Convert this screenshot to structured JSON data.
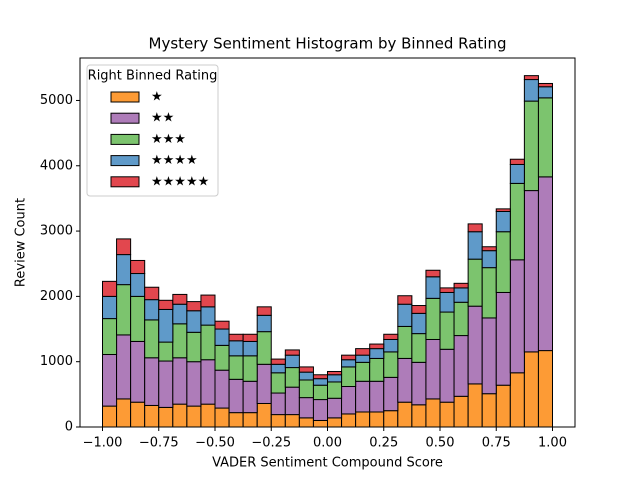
{
  "chart_data": {
    "type": "histogram",
    "stacked": true,
    "title": "Mystery Sentiment Histogram by Binned Rating",
    "x_label": "VADER Sentiment Compound Score",
    "y_label": "Review Count",
    "legend_title": "Right Binned Rating",
    "legend_position": "upper left",
    "bins": [
      -1,
      -0.9375,
      -0.875,
      -0.8125,
      -0.75,
      -0.6875,
      -0.625,
      -0.5625,
      -0.5,
      -0.4375,
      -0.375,
      -0.3125,
      -0.25,
      -0.1875,
      -0.125,
      -0.0625,
      0,
      0.0625,
      0.125,
      0.1875,
      0.25,
      0.3125,
      0.375,
      0.4375,
      0.5,
      0.5625,
      0.625,
      0.6875,
      0.75,
      0.8125,
      0.875,
      0.9375,
      1
    ],
    "series": [
      {
        "name": "★",
        "color": "#fd9b35",
        "values": [
          320,
          430,
          380,
          330,
          300,
          350,
          320,
          350,
          290,
          220,
          220,
          360,
          190,
          190,
          140,
          100,
          140,
          200,
          230,
          230,
          250,
          380,
          340,
          430,
          380,
          470,
          660,
          510,
          640,
          830,
          1150,
          1170
        ]
      },
      {
        "name": "★★",
        "color": "#ae7cb9",
        "values": [
          790,
          980,
          930,
          730,
          710,
          710,
          680,
          680,
          580,
          510,
          480,
          600,
          330,
          420,
          310,
          320,
          300,
          420,
          470,
          470,
          510,
          670,
          650,
          910,
          810,
          930,
          1190,
          1160,
          1420,
          1730,
          2470,
          2660
        ]
      },
      {
        "name": "★★★",
        "color": "#7cc46e",
        "values": [
          550,
          770,
          690,
          580,
          290,
          520,
          450,
          530,
          380,
          360,
          390,
          500,
          310,
          300,
          270,
          220,
          250,
          300,
          290,
          350,
          390,
          490,
          440,
          630,
          570,
          510,
          720,
          770,
          930,
          1170,
          1370,
          1210
        ]
      },
      {
        "name": "★★★★",
        "color": "#5f9ac9",
        "values": [
          340,
          460,
          350,
          310,
          500,
          300,
          330,
          280,
          250,
          230,
          220,
          250,
          130,
          190,
          120,
          100,
          110,
          110,
          110,
          150,
          190,
          340,
          310,
          330,
          300,
          220,
          420,
          260,
          310,
          290,
          330,
          170
        ]
      },
      {
        "name": "★★★★★",
        "color": "#e2474e",
        "values": [
          230,
          240,
          200,
          190,
          140,
          150,
          140,
          180,
          120,
          100,
          110,
          130,
          80,
          80,
          80,
          60,
          50,
          70,
          100,
          70,
          80,
          130,
          120,
          100,
          70,
          70,
          120,
          60,
          40,
          80,
          60,
          50
        ]
      }
    ],
    "xlim": [
      -1.1,
      1.1
    ],
    "ylim": [
      0,
      5650
    ],
    "xticks": [
      {
        "value": -1,
        "label": "−1.00"
      },
      {
        "value": -0.75,
        "label": "−0.75"
      },
      {
        "value": -0.5,
        "label": "−0.50"
      },
      {
        "value": -0.25,
        "label": "−0.25"
      },
      {
        "value": 0,
        "label": "0.00"
      },
      {
        "value": 0.25,
        "label": "0.25"
      },
      {
        "value": 0.5,
        "label": "0.50"
      },
      {
        "value": 0.75,
        "label": "0.75"
      },
      {
        "value": 1,
        "label": "1.00"
      }
    ],
    "yticks": [
      0,
      1000,
      2000,
      3000,
      4000,
      5000
    ]
  }
}
